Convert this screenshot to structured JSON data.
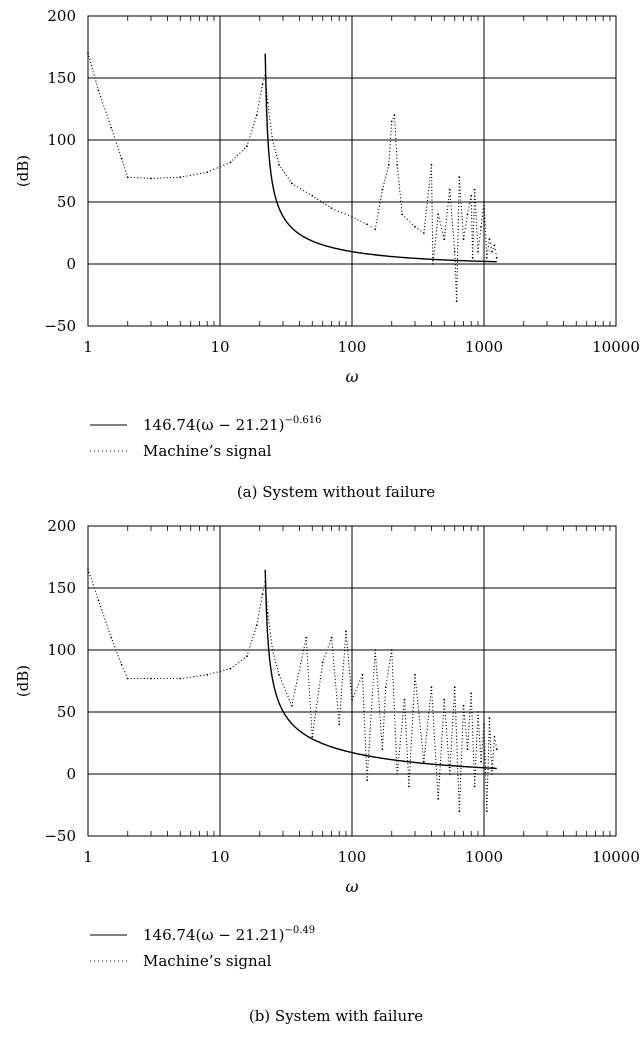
{
  "chart_data": [
    {
      "type": "scatter",
      "caption": "(a) System without failure",
      "xlabel": "ω",
      "ylabel": "(dB)",
      "xscale": "log",
      "xlim": [
        1,
        10000
      ],
      "ylim": [
        -50,
        200
      ],
      "x_ticks": [
        1,
        10,
        100,
        1000,
        10000
      ],
      "x_tick_labels": [
        "1",
        "10",
        "100",
        "1000",
        "10000"
      ],
      "y_ticks": [
        -50,
        0,
        50,
        100,
        150,
        200
      ],
      "y_tick_labels": [
        "−50",
        "0",
        "50",
        "100",
        "150",
        "200"
      ],
      "grid": true,
      "legend_placement": "below",
      "series": [
        {
          "name": "146.74(ω − 21.21)^−0.616",
          "legend_main": "146.74(ω − 21.21)",
          "legend_exponent": "−0.616",
          "style": "solid",
          "formula": {
            "a": 146.74,
            "b": 21.21,
            "p": -0.616
          },
          "x_range": [
            22,
            1250
          ]
        },
        {
          "name": "Machine's signal",
          "legend_main": "Machine’s signal",
          "style": "dotted",
          "x": [
            1,
            1.2,
            1.5,
            1.8,
            2,
            3,
            5,
            8,
            12,
            16,
            19,
            21,
            22,
            23,
            25,
            28,
            35,
            50,
            70,
            100,
            130,
            150,
            170,
            190,
            200,
            210,
            220,
            240,
            300,
            350,
            400,
            410,
            450,
            500,
            550,
            600,
            620,
            650,
            700,
            750,
            800,
            820,
            850,
            900,
            950,
            1000,
            1050,
            1100,
            1150,
            1200,
            1250
          ],
          "y": [
            170,
            140,
            110,
            85,
            70,
            69,
            70,
            74,
            82,
            95,
            120,
            145,
            152,
            130,
            100,
            80,
            65,
            55,
            45,
            38,
            32,
            28,
            60,
            80,
            115,
            120,
            80,
            40,
            30,
            25,
            80,
            0,
            40,
            20,
            60,
            10,
            -30,
            70,
            20,
            40,
            55,
            5,
            60,
            10,
            30,
            50,
            5,
            20,
            10,
            15,
            5
          ]
        }
      ]
    },
    {
      "type": "scatter",
      "caption": "(b) System with failure",
      "xlabel": "ω",
      "ylabel": "(dB)",
      "xscale": "log",
      "xlim": [
        1,
        10000
      ],
      "ylim": [
        -50,
        200
      ],
      "x_ticks": [
        1,
        10,
        100,
        1000,
        10000
      ],
      "x_tick_labels": [
        "1",
        "10",
        "100",
        "1000",
        "10000"
      ],
      "y_ticks": [
        -50,
        0,
        50,
        100,
        150,
        200
      ],
      "y_tick_labels": [
        "−50",
        "0",
        "50",
        "100",
        "150",
        "200"
      ],
      "grid": true,
      "legend_placement": "below",
      "series": [
        {
          "name": "146.74(ω − 21.21)^−0.49",
          "legend_main": "146.74(ω − 21.21)",
          "legend_exponent": "−0.49",
          "style": "solid",
          "formula": {
            "a": 146.74,
            "b": 21.21,
            "p": -0.49
          },
          "x_range": [
            22,
            1250
          ]
        },
        {
          "name": "Machine's signal",
          "legend_main": "Machine’s signal",
          "style": "dotted",
          "x": [
            1,
            1.2,
            1.5,
            1.8,
            2,
            3,
            5,
            8,
            12,
            16,
            19,
            21,
            22,
            23,
            25,
            28,
            35,
            45,
            50,
            60,
            70,
            80,
            90,
            100,
            120,
            130,
            150,
            170,
            180,
            200,
            220,
            250,
            270,
            300,
            350,
            400,
            450,
            500,
            550,
            600,
            650,
            700,
            750,
            800,
            850,
            900,
            950,
            1000,
            1050,
            1100,
            1150,
            1200,
            1250
          ],
          "y": [
            165,
            140,
            110,
            88,
            77,
            77,
            77,
            80,
            85,
            95,
            120,
            145,
            155,
            130,
            100,
            80,
            55,
            110,
            30,
            90,
            110,
            40,
            115,
            60,
            80,
            -5,
            100,
            20,
            70,
            100,
            0,
            60,
            -10,
            80,
            10,
            70,
            -20,
            60,
            0,
            70,
            -30,
            55,
            20,
            65,
            -10,
            50,
            10,
            40,
            -30,
            45,
            0,
            30,
            20
          ]
        }
      ]
    }
  ]
}
